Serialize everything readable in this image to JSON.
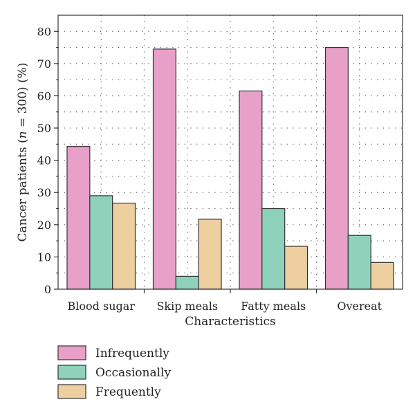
{
  "chart_data": {
    "type": "bar",
    "title": "",
    "categories": [
      "Blood sugar",
      "Skip meals",
      "Fatty meals",
      "Overeat"
    ],
    "series": [
      {
        "name": "Infrequently",
        "color": "#e8a0c8",
        "values": [
          44.3,
          74.5,
          61.5,
          75.0
        ]
      },
      {
        "name": "Occasionally",
        "color": "#8ed2bc",
        "values": [
          29.0,
          4.0,
          25.0,
          16.7
        ]
      },
      {
        "name": "Frequently",
        "color": "#edcfa0",
        "values": [
          26.7,
          21.7,
          13.3,
          8.3
        ]
      }
    ],
    "xlabel": "Characteristics",
    "ylabel_prefix": "Cancer patients (",
    "ylabel_n": "n",
    "ylabel_suffix": " = 300) (%)",
    "ylim": [
      0,
      85
    ],
    "yticks": [
      0,
      10,
      20,
      30,
      40,
      50,
      60,
      70,
      80
    ],
    "grid": "dotted",
    "legend_position": "bottom-left"
  }
}
